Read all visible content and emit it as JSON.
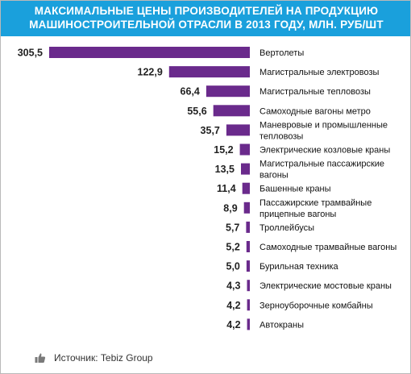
{
  "header": {
    "title": "МАКСИМАЛЬНЫЕ ЦЕНЫ ПРОИЗВОДИТЕЛЕЙ НА ПРОДУКЦИЮ\nМАШИНОСТРОИТЕЛЬНОЙ ОТРАСЛИ В 2013 ГОДУ, МЛН. РУБ/ШТ"
  },
  "colors": {
    "header_bg": "#1aa0dc",
    "bar": "#6a2a8c"
  },
  "footer": {
    "icon": "thumbs-up-icon",
    "source": "Источник: Tebiz Group"
  },
  "chart_data": {
    "type": "bar",
    "orientation": "horizontal-right-aligned",
    "title": "МАКСИМАЛЬНЫЕ ЦЕНЫ ПРОИЗВОДИТЕЛЕЙ НА ПРОДУКЦИЮ МАШИНОСТРОИТЕЛЬНОЙ ОТРАСЛИ В 2013 ГОДУ, МЛН. РУБ/ШТ",
    "xlabel": "",
    "ylabel": "",
    "grid": false,
    "categories": [
      "Вертолеты",
      "Магистральные электровозы",
      "Магистральные тепловозы",
      "Самоходные вагоны метро",
      "Маневровые и промышленные\nтепловозы",
      "Электрические козловые краны",
      "Магистральные пассажирские\nвагоны",
      "Башенные краны",
      "Пассажирские трамвайные\nприцепные вагоны",
      "Троллейбусы",
      "Самоходные трамвайные вагоны",
      "Бурильная техника",
      "Электрические мостовые краны",
      "Зерноуборочные комбайны",
      "Автокраны"
    ],
    "values": [
      305.5,
      122.9,
      66.4,
      55.6,
      35.7,
      15.2,
      13.5,
      11.4,
      8.9,
      5.7,
      5.2,
      5.0,
      4.3,
      4.2,
      4.2
    ],
    "value_labels": [
      "305,5",
      "122,9",
      "66,4",
      "55,6",
      "35,7",
      "15,2",
      "13,5",
      "11,4",
      "8,9",
      "5,7",
      "5,2",
      "5,0",
      "4,3",
      "4,2",
      "4,2"
    ]
  }
}
